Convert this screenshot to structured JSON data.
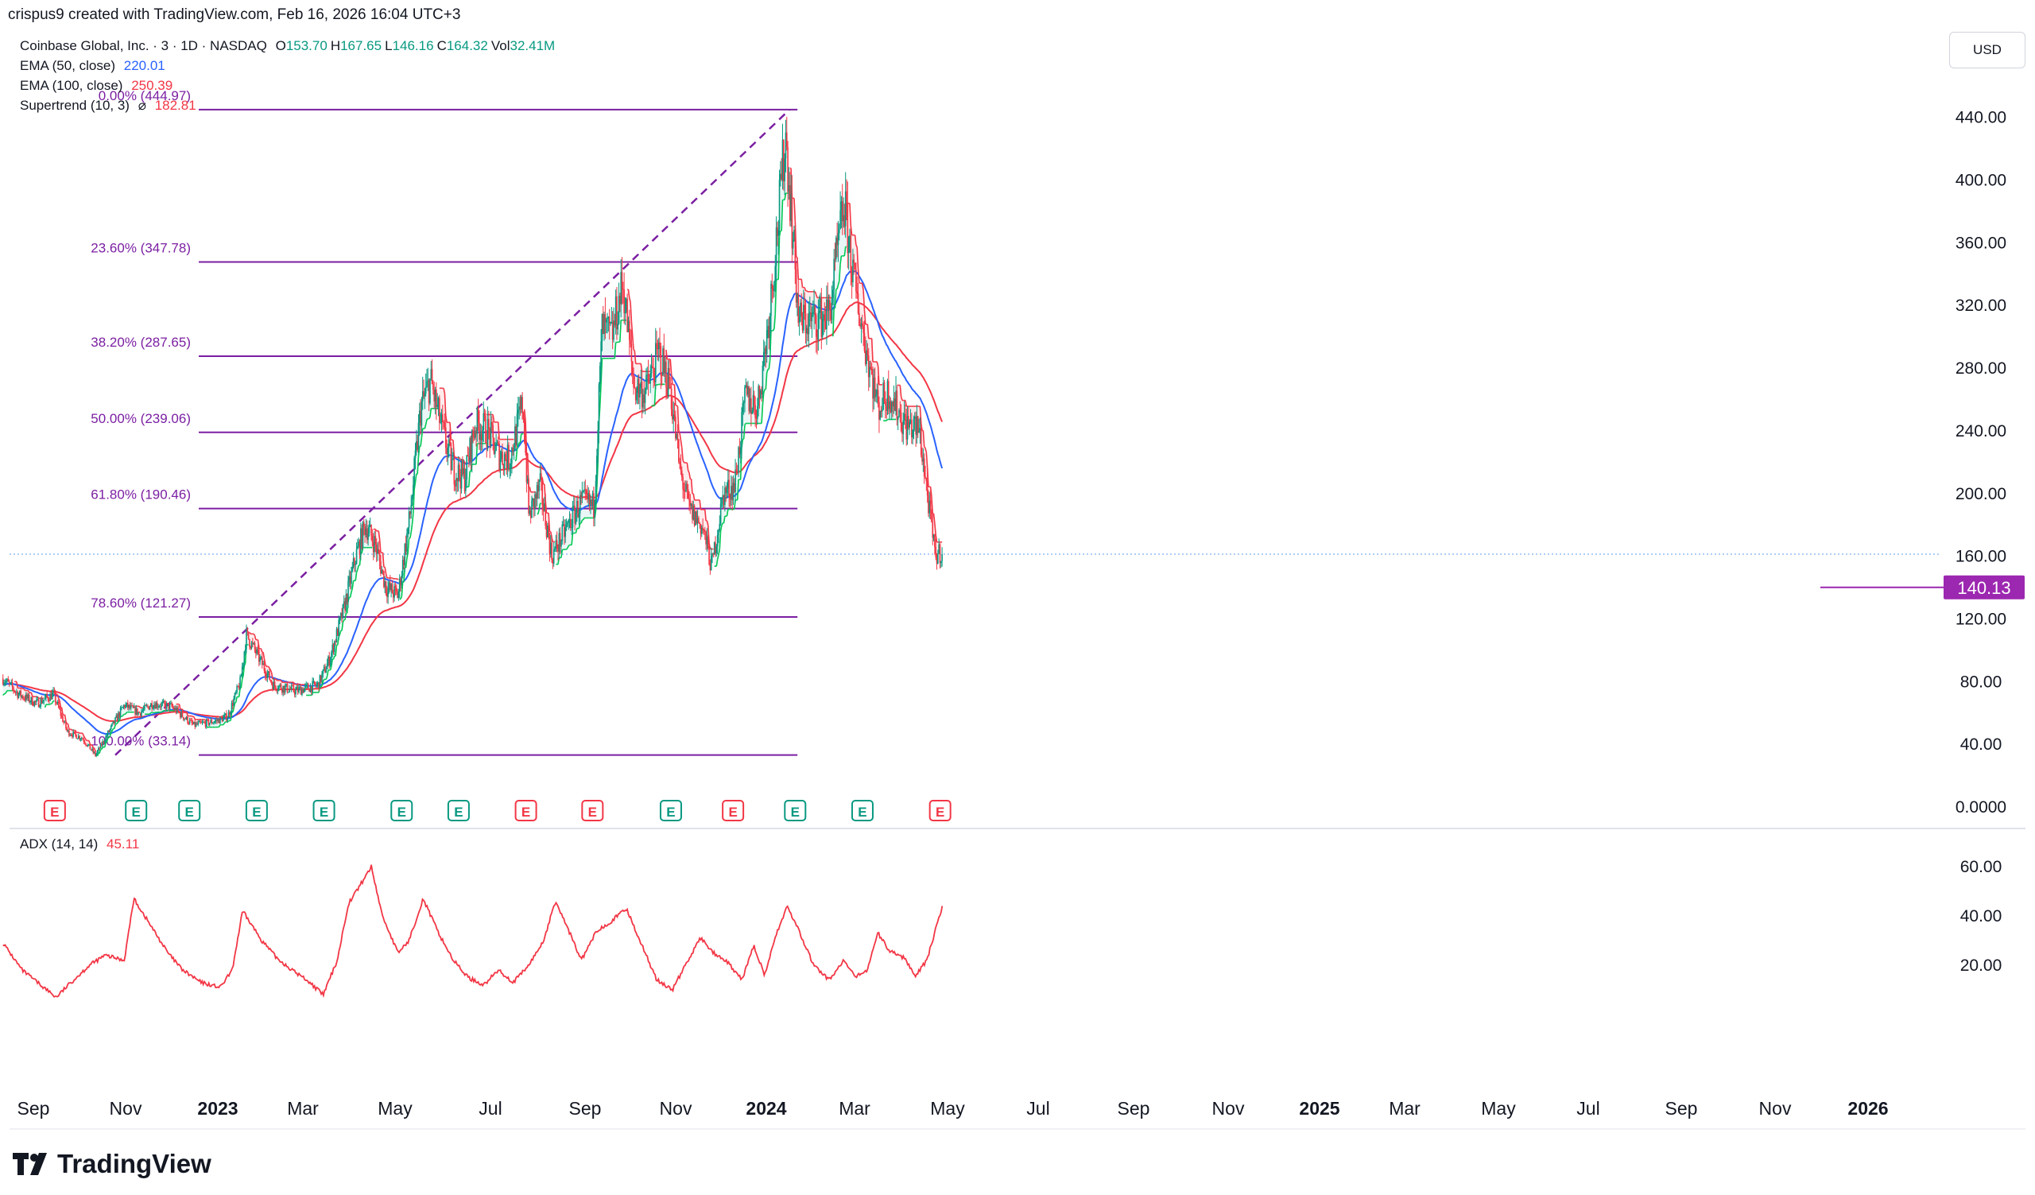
{
  "header": {
    "created_by": "crispus9 created with TradingView.com, Feb 16, 2026 16:04 UTC+3"
  },
  "legend": {
    "symbol": "Coinbase Global, Inc. · 3 · 1D · NASDAQ",
    "ohlc": [
      {
        "k": "O",
        "v": "153.70"
      },
      {
        "k": "H",
        "v": "167.65"
      },
      {
        "k": "L",
        "v": "146.16"
      },
      {
        "k": "C",
        "v": "164.32"
      },
      {
        "k": "Vol",
        "v": "32.41M"
      }
    ],
    "ema50_label": "EMA (50, close)",
    "ema50_value": "220.01",
    "ema100_label": "EMA (100, close)",
    "ema100_value": "250.39",
    "supertrend_label": "Supertrend (10, 3)",
    "supertrend_symbol": "⌀",
    "supertrend_value": "182.81",
    "adx_label": "ADX (14, 14)",
    "adx_value": "45.11"
  },
  "currency_button": "USD",
  "brand": "TradingView",
  "colors": {
    "up": "#089981",
    "down": "#f23645",
    "ema50": "#2962ff",
    "ema100": "#f23645",
    "fib": "#7b1fa2",
    "st_up": "#26a69a",
    "st_down": "#f23645",
    "adx": "#f23645"
  },
  "chart_data": {
    "type": "candlestick",
    "price_axis": {
      "ylim": [
        0,
        460
      ],
      "ticks": [
        "0.0000",
        "40.00",
        "80.00",
        "120.00",
        "160.00",
        "200.00",
        "240.00",
        "280.00",
        "320.00",
        "360.00",
        "400.00",
        "440.00"
      ]
    },
    "time_axis": {
      "ticks": [
        "Sep",
        "Nov",
        "2023",
        "Mar",
        "May",
        "Jul",
        "Sep",
        "Nov",
        "2024",
        "Mar",
        "May",
        "Jul",
        "Sep",
        "Nov",
        "2025",
        "Mar",
        "May",
        "Jul",
        "Sep",
        "Nov",
        "2026"
      ],
      "bold_ticks": [
        "2023",
        "2024",
        "2025",
        "2026"
      ]
    },
    "last_price_label": "140.13",
    "fibonacci": [
      {
        "label": "0.00% (444.97)",
        "value": 444.97
      },
      {
        "label": "23.60% (347.78)",
        "value": 347.78
      },
      {
        "label": "38.20% (287.65)",
        "value": 287.65
      },
      {
        "label": "50.00% (239.06)",
        "value": 239.06
      },
      {
        "label": "61.80% (190.46)",
        "value": 190.46
      },
      {
        "label": "78.60% (121.27)",
        "value": 121.27
      },
      {
        "label": "100.00% (33.14)",
        "value": 33.14
      }
    ],
    "fib_trend": {
      "from": [
        "2022-12-28",
        33.14
      ],
      "to": [
        "2025-07-18",
        444.97
      ]
    },
    "earnings_markers": [
      {
        "date": "2022-11-03",
        "type": "negative"
      },
      {
        "date": "2023-02-21",
        "type": "positive"
      },
      {
        "date": "2023-05-04",
        "type": "positive"
      },
      {
        "date": "2023-08-03",
        "type": "positive"
      },
      {
        "date": "2023-11-02",
        "type": "positive"
      },
      {
        "date": "2024-02-15",
        "type": "positive"
      },
      {
        "date": "2024-05-02",
        "type": "positive"
      },
      {
        "date": "2024-08-01",
        "type": "negative"
      },
      {
        "date": "2024-10-30",
        "type": "negative"
      },
      {
        "date": "2025-02-13",
        "type": "positive"
      },
      {
        "date": "2025-05-08",
        "type": "negative"
      },
      {
        "date": "2025-07-31",
        "type": "positive"
      },
      {
        "date": "2025-10-30",
        "type": "positive"
      },
      {
        "date": "2026-02-12",
        "type": "negative"
      }
    ],
    "price_path": [
      [
        "2022-08-25",
        82
      ],
      [
        "2022-09-15",
        72
      ],
      [
        "2022-10-10",
        66
      ],
      [
        "2022-11-01",
        72
      ],
      [
        "2022-11-20",
        48
      ],
      [
        "2022-12-10",
        44
      ],
      [
        "2022-12-28",
        33
      ],
      [
        "2023-01-20",
        52
      ],
      [
        "2023-02-05",
        65
      ],
      [
        "2023-02-25",
        60
      ],
      [
        "2023-03-15",
        66
      ],
      [
        "2023-04-10",
        64
      ],
      [
        "2023-05-10",
        52
      ],
      [
        "2023-06-10",
        55
      ],
      [
        "2023-06-25",
        58
      ],
      [
        "2023-07-12",
        80
      ],
      [
        "2023-07-20",
        110
      ],
      [
        "2023-08-05",
        96
      ],
      [
        "2023-08-25",
        78
      ],
      [
        "2023-09-25",
        74
      ],
      [
        "2023-10-25",
        78
      ],
      [
        "2023-11-10",
        95
      ],
      [
        "2023-11-28",
        125
      ],
      [
        "2023-12-15",
        160
      ],
      [
        "2023-12-28",
        180
      ],
      [
        "2024-01-10",
        168
      ],
      [
        "2024-01-25",
        140
      ],
      [
        "2024-02-10",
        135
      ],
      [
        "2024-02-26",
        185
      ],
      [
        "2024-03-12",
        255
      ],
      [
        "2024-03-25",
        272
      ],
      [
        "2024-04-10",
        240
      ],
      [
        "2024-04-25",
        215
      ],
      [
        "2024-05-10",
        210
      ],
      [
        "2024-05-25",
        245
      ],
      [
        "2024-06-10",
        240
      ],
      [
        "2024-06-25",
        225
      ],
      [
        "2024-07-10",
        222
      ],
      [
        "2024-07-28",
        258
      ],
      [
        "2024-08-05",
        185
      ],
      [
        "2024-08-20",
        205
      ],
      [
        "2024-09-05",
        160
      ],
      [
        "2024-09-25",
        178
      ],
      [
        "2024-10-15",
        195
      ],
      [
        "2024-11-01",
        192
      ],
      [
        "2024-11-12",
        305
      ],
      [
        "2024-11-25",
        300
      ],
      [
        "2024-12-10",
        335
      ],
      [
        "2024-12-25",
        268
      ],
      [
        "2025-01-10",
        265
      ],
      [
        "2025-01-28",
        290
      ],
      [
        "2025-02-12",
        268
      ],
      [
        "2025-02-25",
        215
      ],
      [
        "2025-03-10",
        190
      ],
      [
        "2025-03-28",
        178
      ],
      [
        "2025-04-09",
        153
      ],
      [
        "2025-04-25",
        200
      ],
      [
        "2025-05-10",
        205
      ],
      [
        "2025-05-25",
        262
      ],
      [
        "2025-06-10",
        255
      ],
      [
        "2025-06-25",
        310
      ],
      [
        "2025-07-10",
        385
      ],
      [
        "2025-07-18",
        430
      ],
      [
        "2025-08-05",
        310
      ],
      [
        "2025-08-25",
        310
      ],
      [
        "2025-09-15",
        315
      ],
      [
        "2025-10-05",
        385
      ],
      [
        "2025-10-20",
        330
      ],
      [
        "2025-11-05",
        290
      ],
      [
        "2025-11-20",
        255
      ],
      [
        "2025-12-05",
        265
      ],
      [
        "2025-12-25",
        245
      ],
      [
        "2026-01-15",
        240
      ],
      [
        "2026-02-05",
        160
      ],
      [
        "2026-02-16",
        164
      ]
    ],
    "adx_pane": {
      "ylim": [
        0,
        66
      ],
      "ticks": [
        "20.00",
        "40.00",
        "60.00"
      ]
    },
    "adx_path": [
      [
        "2022-08-25",
        29
      ],
      [
        "2022-09-20",
        18
      ],
      [
        "2022-10-15",
        12
      ],
      [
        "2022-11-05",
        7
      ],
      [
        "2022-11-25",
        13
      ],
      [
        "2022-12-20",
        20
      ],
      [
        "2023-01-10",
        24
      ],
      [
        "2023-02-05",
        22
      ],
      [
        "2023-02-18",
        47
      ],
      [
        "2023-03-15",
        35
      ],
      [
        "2023-04-05",
        25
      ],
      [
        "2023-04-25",
        18
      ],
      [
        "2023-05-20",
        13
      ],
      [
        "2023-06-15",
        11
      ],
      [
        "2023-07-01",
        18
      ],
      [
        "2023-07-15",
        42
      ],
      [
        "2023-08-10",
        30
      ],
      [
        "2023-08-30",
        23
      ],
      [
        "2023-09-20",
        18
      ],
      [
        "2023-10-10",
        14
      ],
      [
        "2023-11-01",
        8
      ],
      [
        "2023-11-20",
        22
      ],
      [
        "2023-12-05",
        45
      ],
      [
        "2023-12-20",
        52
      ],
      [
        "2024-01-05",
        60
      ],
      [
        "2024-01-20",
        40
      ],
      [
        "2024-02-10",
        25
      ],
      [
        "2024-02-25",
        30
      ],
      [
        "2024-03-15",
        47
      ],
      [
        "2024-04-05",
        33
      ],
      [
        "2024-04-25",
        22
      ],
      [
        "2024-05-15",
        15
      ],
      [
        "2024-06-05",
        12
      ],
      [
        "2024-06-25",
        18
      ],
      [
        "2024-07-15",
        13
      ],
      [
        "2024-08-05",
        20
      ],
      [
        "2024-08-25",
        30
      ],
      [
        "2024-09-10",
        46
      ],
      [
        "2024-09-28",
        34
      ],
      [
        "2024-10-15",
        22
      ],
      [
        "2024-11-05",
        34
      ],
      [
        "2024-11-25",
        38
      ],
      [
        "2024-12-15",
        43
      ],
      [
        "2025-01-05",
        28
      ],
      [
        "2025-01-25",
        14
      ],
      [
        "2025-02-15",
        10
      ],
      [
        "2025-03-10",
        23
      ],
      [
        "2025-03-25",
        31
      ],
      [
        "2025-04-15",
        24
      ],
      [
        "2025-05-01",
        21
      ],
      [
        "2025-05-20",
        14
      ],
      [
        "2025-06-05",
        28
      ],
      [
        "2025-06-20",
        16
      ],
      [
        "2025-07-05",
        32
      ],
      [
        "2025-07-20",
        44
      ],
      [
        "2025-08-05",
        34
      ],
      [
        "2025-08-25",
        20
      ],
      [
        "2025-09-15",
        14
      ],
      [
        "2025-10-05",
        22
      ],
      [
        "2025-10-20",
        15
      ],
      [
        "2025-11-05",
        18
      ],
      [
        "2025-11-20",
        33
      ],
      [
        "2025-12-05",
        26
      ],
      [
        "2025-12-25",
        23
      ],
      [
        "2026-01-10",
        16
      ],
      [
        "2026-01-25",
        22
      ],
      [
        "2026-02-16",
        45
      ]
    ]
  }
}
